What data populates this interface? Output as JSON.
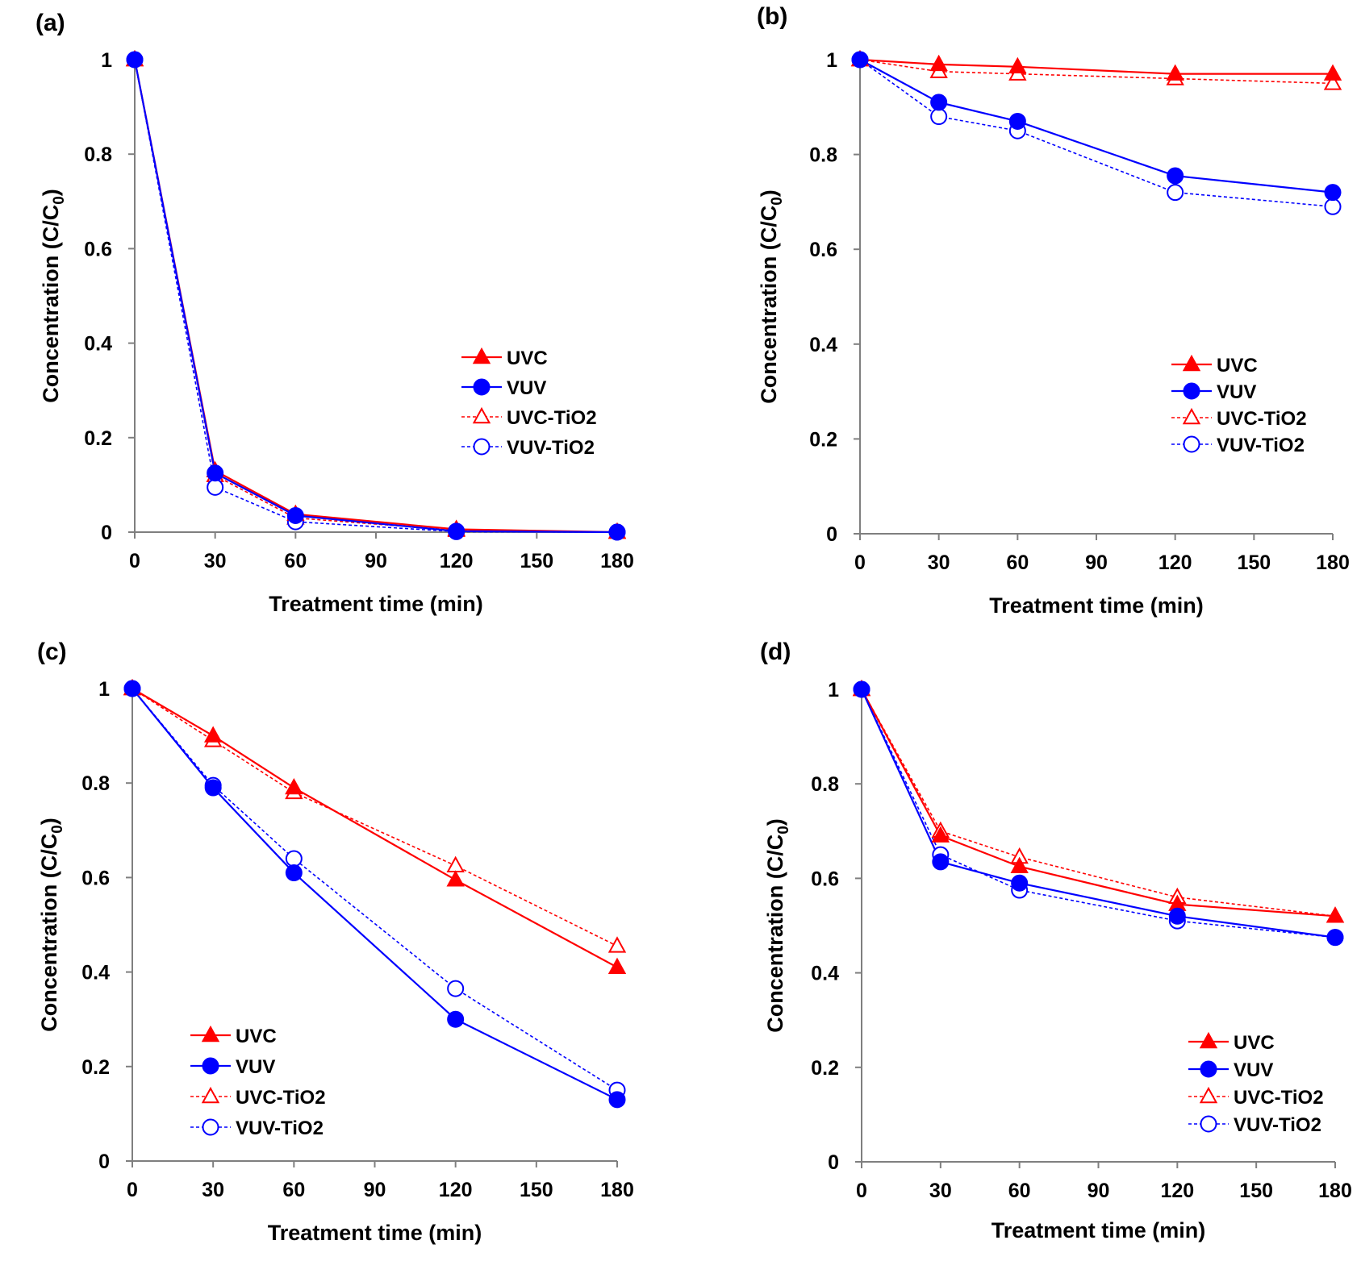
{
  "figure": {
    "series_styles": [
      {
        "name": "UVC",
        "color": "#ff0000",
        "marker": "triangle",
        "filled": true,
        "dashed": false
      },
      {
        "name": "VUV",
        "color": "#0000ff",
        "marker": "circle",
        "filled": true,
        "dashed": false
      },
      {
        "name": "UVC-TiO2",
        "color": "#ff0000",
        "marker": "triangle",
        "filled": false,
        "dashed": true
      },
      {
        "name": "VUV-TiO2",
        "color": "#0000ff",
        "marker": "circle",
        "filled": false,
        "dashed": true
      }
    ]
  },
  "chart_data": [
    {
      "panel": "(a)",
      "type": "line",
      "xlabel": "Treatment time (min)",
      "ylabel": "Concentration (C/C",
      "ylabel_sub": "0",
      "ylabel_end": ")",
      "xlim": [
        0,
        180
      ],
      "ylim": [
        0,
        1
      ],
      "xticks": [
        0,
        30,
        60,
        90,
        120,
        150,
        180
      ],
      "yticks": [
        0,
        0.2,
        0.4,
        0.6,
        0.8,
        1
      ],
      "ytick_labels": [
        "0",
        "0.2",
        "0.4",
        "0.6",
        "0.8",
        "1"
      ],
      "legend": "right-center",
      "x": [
        0,
        30,
        60,
        120,
        180
      ],
      "series": [
        {
          "name": "UVC",
          "values": [
            1.0,
            0.13,
            0.038,
            0.006,
            0.0
          ]
        },
        {
          "name": "VUV",
          "values": [
            1.0,
            0.125,
            0.035,
            0.002,
            0.0
          ]
        },
        {
          "name": "UVC-TiO2",
          "values": [
            1.0,
            0.12,
            0.03,
            0.004,
            0.0
          ]
        },
        {
          "name": "VUV-TiO2",
          "values": [
            1.0,
            0.095,
            0.022,
            0.001,
            0.0
          ]
        }
      ]
    },
    {
      "panel": "(b)",
      "type": "line",
      "xlabel": "Treatment time (min)",
      "ylabel": "Concentration (C/C",
      "ylabel_sub": "0",
      "ylabel_end": ")",
      "xlim": [
        0,
        180
      ],
      "ylim": [
        0,
        1
      ],
      "xticks": [
        0,
        30,
        60,
        90,
        120,
        150,
        180
      ],
      "yticks": [
        0,
        0.2,
        0.4,
        0.6,
        0.8,
        1
      ],
      "ytick_labels": [
        "0",
        "0.2",
        "0.4",
        "0.6",
        "0.8",
        "1"
      ],
      "legend": "right-center",
      "x": [
        0,
        30,
        60,
        120,
        180
      ],
      "series": [
        {
          "name": "UVC",
          "values": [
            1.0,
            0.99,
            0.985,
            0.97,
            0.97
          ]
        },
        {
          "name": "VUV",
          "values": [
            1.0,
            0.91,
            0.87,
            0.755,
            0.72
          ]
        },
        {
          "name": "UVC-TiO2",
          "values": [
            1.0,
            0.975,
            0.97,
            0.96,
            0.95
          ]
        },
        {
          "name": "VUV-TiO2",
          "values": [
            1.0,
            0.88,
            0.85,
            0.72,
            0.69
          ]
        }
      ]
    },
    {
      "panel": "(c)",
      "type": "line",
      "xlabel": "Treatment time (min)",
      "ylabel": "Concentration (C/C",
      "ylabel_sub": "0",
      "ylabel_end": ")",
      "xlim": [
        0,
        180
      ],
      "ylim": [
        0,
        1
      ],
      "xticks": [
        0,
        30,
        60,
        90,
        120,
        150,
        180
      ],
      "yticks": [
        0,
        0.2,
        0.4,
        0.6,
        0.8,
        1
      ],
      "ytick_labels": [
        "0",
        "0.2",
        "0.4",
        "0.6",
        "0.8",
        "1"
      ],
      "legend": "left-bottom",
      "x": [
        0,
        30,
        60,
        120,
        180
      ],
      "series": [
        {
          "name": "UVC",
          "values": [
            1.0,
            0.9,
            0.79,
            0.595,
            0.41
          ]
        },
        {
          "name": "VUV",
          "values": [
            1.0,
            0.79,
            0.61,
            0.3,
            0.13
          ]
        },
        {
          "name": "UVC-TiO2",
          "values": [
            1.0,
            0.89,
            0.78,
            0.625,
            0.455
          ]
        },
        {
          "name": "VUV-TiO2",
          "values": [
            1.0,
            0.795,
            0.64,
            0.365,
            0.15
          ]
        }
      ]
    },
    {
      "panel": "(d)",
      "type": "line",
      "xlabel": "Treatment time (min)",
      "ylabel": "Concentration (C/C",
      "ylabel_sub": "0",
      "ylabel_end": ")",
      "xlim": [
        0,
        180
      ],
      "ylim": [
        0,
        1
      ],
      "xticks": [
        0,
        30,
        60,
        90,
        120,
        150,
        180
      ],
      "yticks": [
        0,
        0.2,
        0.4,
        0.6,
        0.8,
        1
      ],
      "ytick_labels": [
        "0",
        "0.2",
        "0.4",
        "0.6",
        "0.8",
        "1"
      ],
      "legend": "right-bottom",
      "x": [
        0,
        30,
        60,
        120,
        180
      ],
      "series": [
        {
          "name": "UVC",
          "values": [
            1.0,
            0.69,
            0.625,
            0.545,
            0.52
          ]
        },
        {
          "name": "VUV",
          "values": [
            1.0,
            0.635,
            0.59,
            0.52,
            0.475
          ]
        },
        {
          "name": "UVC-TiO2",
          "values": [
            1.0,
            0.7,
            0.645,
            0.56,
            0.52
          ]
        },
        {
          "name": "VUV-TiO2",
          "values": [
            1.0,
            0.65,
            0.575,
            0.51,
            0.475
          ]
        }
      ]
    }
  ]
}
